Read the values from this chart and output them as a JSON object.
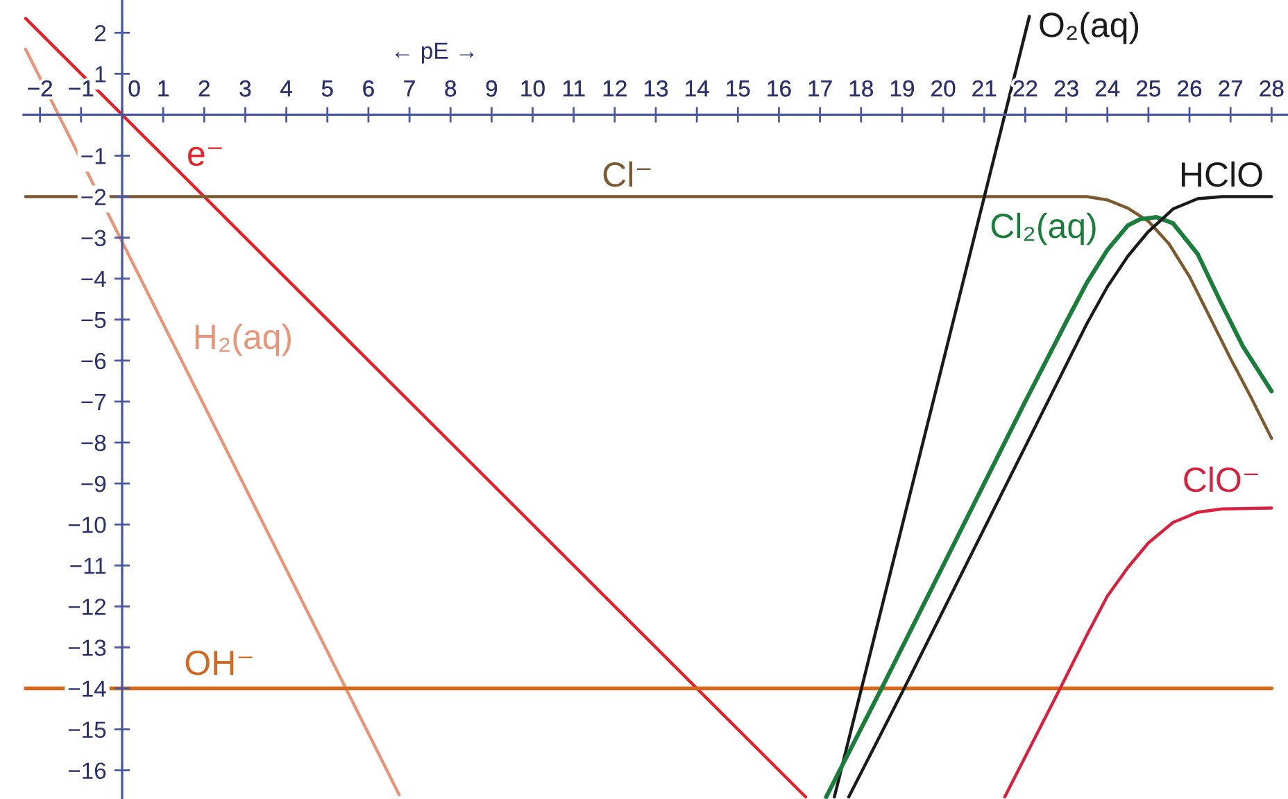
{
  "chart_data": {
    "type": "line",
    "xlabel": "← pE →",
    "xlim": [
      -2.4,
      28.4
    ],
    "ylim": [
      -16.7,
      2.8
    ],
    "xticks": [
      {
        "value": -2,
        "label": "−2"
      },
      {
        "value": -1,
        "label": "−1"
      },
      0,
      1,
      2,
      3,
      4,
      5,
      6,
      7,
      8,
      9,
      10,
      11,
      12,
      13,
      14,
      15,
      16,
      17,
      18,
      19,
      20,
      21,
      22,
      23,
      24,
      25,
      26,
      27,
      28
    ],
    "yticks": [
      {
        "value": -16,
        "label": "−16"
      },
      {
        "value": -15,
        "label": "−15"
      },
      {
        "value": -14,
        "label": "−14"
      },
      {
        "value": -13,
        "label": "−13"
      },
      {
        "value": -12,
        "label": "−12"
      },
      {
        "value": -11,
        "label": "−11"
      },
      {
        "value": -10,
        "label": "−10"
      },
      {
        "value": -9,
        "label": "−9"
      },
      {
        "value": -8,
        "label": "−8"
      },
      {
        "value": -7,
        "label": "−7"
      },
      {
        "value": -6,
        "label": "−6"
      },
      {
        "value": -5,
        "label": "−5"
      },
      {
        "value": -4,
        "label": "−4"
      },
      {
        "value": -3,
        "label": "−3"
      },
      {
        "value": -2,
        "label": "−2"
      },
      {
        "value": -1,
        "label": "−1"
      },
      1,
      2
    ],
    "series": [
      {
        "name": "e⁻",
        "color": "#e8202a",
        "x": [
          -2.35,
          16.65
        ],
        "values": [
          2.35,
          -16.65
        ]
      },
      {
        "name": "H₂(aq)",
        "color": "#e8967a",
        "x": [
          -2.35,
          6.75
        ],
        "values": [
          1.6,
          -16.6
        ]
      },
      {
        "name": "Cl⁻",
        "color": "#7a5a2e",
        "x": [
          -2.35,
          23.5,
          24,
          24.5,
          25,
          25.5,
          26,
          26.5,
          27,
          27.5,
          28
        ],
        "values": [
          -2,
          -2,
          -2.08,
          -2.28,
          -2.6,
          -3.15,
          -3.95,
          -4.95,
          -5.95,
          -6.9,
          -7.9
        ]
      },
      {
        "name": "OH⁻",
        "color": "#d2691e",
        "x": [
          -2.35,
          28
        ],
        "values": [
          -14,
          -14
        ]
      },
      {
        "name": "O₂(aq)",
        "color": "#1a1a1a",
        "x": [
          17.35,
          22.1
        ],
        "values": [
          -16.65,
          2.4
        ]
      },
      {
        "name": "Cl₂(aq)",
        "color": "#1b7d3c",
        "x": [
          17.15,
          18.5,
          20,
          22,
          23,
          23.5,
          24,
          24.5,
          24.8,
          25.2,
          25.6,
          26.2,
          26.75,
          27.3,
          28
        ],
        "values": [
          -16.65,
          -14,
          -11,
          -7,
          -5.05,
          -4.1,
          -3.3,
          -2.7,
          -2.55,
          -2.5,
          -2.65,
          -3.4,
          -4.55,
          -5.65,
          -6.75
        ]
      },
      {
        "name": "HClO",
        "color": "#1a1a1a",
        "x": [
          17.7,
          19.05,
          21,
          23,
          23.5,
          24,
          24.5,
          25,
          25.6,
          26.2,
          26.8,
          28
        ],
        "values": [
          -16.65,
          -14,
          -10.1,
          -6.1,
          -5.1,
          -4.2,
          -3.45,
          -2.85,
          -2.3,
          -2.05,
          -2,
          -2
        ]
      },
      {
        "name": "ClO⁻",
        "color": "#d6213f",
        "x": [
          21.5,
          22.85,
          23.5,
          24,
          24.5,
          25,
          25.6,
          26.2,
          26.8,
          28
        ],
        "values": [
          -16.65,
          -14,
          -12.7,
          -11.75,
          -11.05,
          -10.45,
          -9.95,
          -9.7,
          -9.62,
          -9.6
        ]
      }
    ]
  }
}
